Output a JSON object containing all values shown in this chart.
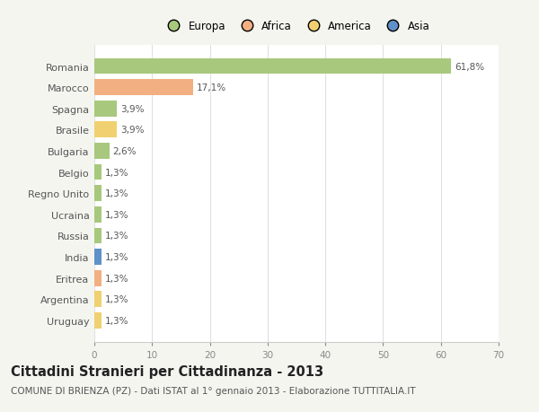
{
  "countries": [
    "Romania",
    "Marocco",
    "Spagna",
    "Brasile",
    "Bulgaria",
    "Belgio",
    "Regno Unito",
    "Ucraina",
    "Russia",
    "India",
    "Eritrea",
    "Argentina",
    "Uruguay"
  ],
  "values": [
    61.8,
    17.1,
    3.9,
    3.9,
    2.6,
    1.3,
    1.3,
    1.3,
    1.3,
    1.3,
    1.3,
    1.3,
    1.3
  ],
  "labels": [
    "61,8%",
    "17,1%",
    "3,9%",
    "3,9%",
    "2,6%",
    "1,3%",
    "1,3%",
    "1,3%",
    "1,3%",
    "1,3%",
    "1,3%",
    "1,3%",
    "1,3%"
  ],
  "continents": [
    "Europa",
    "Africa",
    "Europa",
    "America",
    "Europa",
    "Europa",
    "Europa",
    "Europa",
    "Europa",
    "Asia",
    "Africa",
    "America",
    "America"
  ],
  "colors": {
    "Europa": "#a8c87e",
    "Africa": "#f2b082",
    "America": "#f0d070",
    "Asia": "#6090c8"
  },
  "xlim": [
    0,
    70
  ],
  "xticks": [
    0,
    10,
    20,
    30,
    40,
    50,
    60,
    70
  ],
  "background_color": "#f5f5f0",
  "plot_bg_color": "#ffffff",
  "title": "Cittadini Stranieri per Cittadinanza - 2013",
  "subtitle": "COMUNE DI BRIENZA (PZ) - Dati ISTAT al 1° gennaio 2013 - Elaborazione TUTTITALIA.IT",
  "title_fontsize": 10.5,
  "subtitle_fontsize": 7.5,
  "grid_color": "#e0e0e0",
  "legend_order": [
    "Europa",
    "Africa",
    "America",
    "Asia"
  ]
}
